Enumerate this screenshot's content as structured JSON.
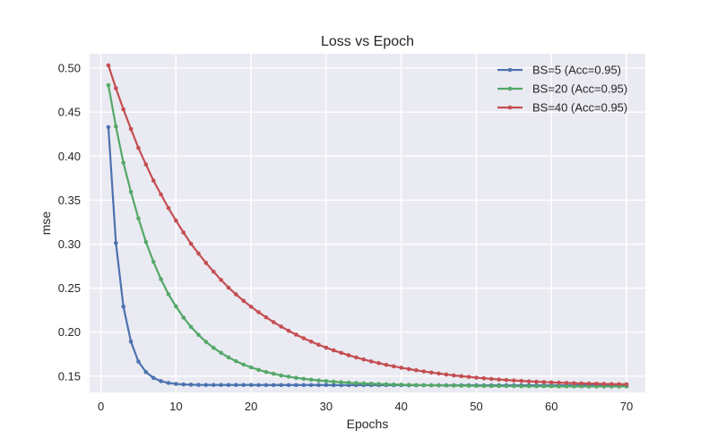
{
  "chart_data": {
    "type": "line",
    "title": "Loss vs Epoch",
    "xlabel": "Epochs",
    "ylabel": "mse",
    "xlim": [
      -1.5,
      72.5
    ],
    "ylim": [
      0.1315,
      0.5164
    ],
    "xticks": [
      0,
      10,
      20,
      30,
      40,
      50,
      60,
      70
    ],
    "xtick_labels": [
      "0",
      "10",
      "20",
      "30",
      "40",
      "50",
      "60",
      "70"
    ],
    "yticks": [
      0.15,
      0.2,
      0.25,
      0.3,
      0.35,
      0.4,
      0.45,
      0.5
    ],
    "ytick_labels": [
      "0.15",
      "0.20",
      "0.25",
      "0.30",
      "0.35",
      "0.40",
      "0.45",
      "0.50"
    ],
    "grid": true,
    "legend_position": "top-right",
    "x": [
      1,
      2,
      3,
      4,
      5,
      6,
      7,
      8,
      9,
      10,
      11,
      12,
      13,
      14,
      15,
      16,
      17,
      18,
      19,
      20,
      21,
      22,
      23,
      24,
      25,
      26,
      27,
      28,
      29,
      30,
      31,
      32,
      33,
      34,
      35,
      36,
      37,
      38,
      39,
      40,
      41,
      42,
      43,
      44,
      45,
      46,
      47,
      48,
      49,
      50,
      51,
      52,
      53,
      54,
      55,
      56,
      57,
      58,
      59,
      60,
      61,
      62,
      63,
      64,
      65,
      66,
      67,
      68,
      69,
      70
    ],
    "series": [
      {
        "name": "BS=5 (Acc=0.95)",
        "color": "#4c72b0",
        "values": [
          0.433,
          0.3013,
          0.229,
          0.1893,
          0.1665,
          0.1547,
          0.148,
          0.1443,
          0.1423,
          0.1412,
          0.1406,
          0.1403,
          0.1401,
          0.14,
          0.14,
          0.14,
          0.14,
          0.14,
          0.14,
          0.14,
          0.1399,
          0.1399,
          0.1399,
          0.1399,
          0.1399,
          0.1399,
          0.1399,
          0.1399,
          0.1399,
          0.1399,
          0.1398,
          0.1398,
          0.1398,
          0.1398,
          0.1398,
          0.1398,
          0.1398,
          0.1398,
          0.1398,
          0.1398,
          0.1397,
          0.1397,
          0.1397,
          0.1397,
          0.1397,
          0.1397,
          0.1397,
          0.1397,
          0.1397,
          0.1397,
          0.1396,
          0.1396,
          0.1396,
          0.1396,
          0.1396,
          0.1396,
          0.1396,
          0.1396,
          0.1396,
          0.1396,
          0.1395,
          0.1395,
          0.1395,
          0.1395,
          0.1395,
          0.1395,
          0.1395,
          0.1395,
          0.1395,
          0.1395
        ]
      },
      {
        "name": "BS=20 (Acc=0.95)",
        "color": "#55a868",
        "values": [
          0.4807,
          0.4338,
          0.3925,
          0.3594,
          0.3293,
          0.3025,
          0.28,
          0.2602,
          0.243,
          0.2292,
          0.2166,
          0.206,
          0.197,
          0.189,
          0.1822,
          0.1765,
          0.1713,
          0.167,
          0.1632,
          0.16,
          0.1572,
          0.1548,
          0.1527,
          0.1509,
          0.1494,
          0.1481,
          0.147,
          0.146,
          0.1451,
          0.1444,
          0.1437,
          0.1431,
          0.1426,
          0.1421,
          0.1417,
          0.1414,
          0.1411,
          0.1408,
          0.1405,
          0.1403,
          0.1401,
          0.1399,
          0.1397,
          0.1396,
          0.1395,
          0.1394,
          0.1393,
          0.1392,
          0.1391,
          0.139,
          0.1389,
          0.1388,
          0.1388,
          0.1387,
          0.1387,
          0.1386,
          0.1386,
          0.1385,
          0.1385,
          0.1385,
          0.1384,
          0.1384,
          0.1384,
          0.1384,
          0.1383,
          0.1383,
          0.1383,
          0.1383,
          0.1383,
          0.1383
        ]
      },
      {
        "name": "BS=40 (Acc=0.95)",
        "color": "#c44e52",
        "values": [
          0.5032,
          0.4772,
          0.4532,
          0.431,
          0.4093,
          0.3906,
          0.3723,
          0.3565,
          0.341,
          0.3268,
          0.3133,
          0.3005,
          0.2894,
          0.2787,
          0.2688,
          0.2594,
          0.2506,
          0.2429,
          0.2356,
          0.2289,
          0.2227,
          0.2169,
          0.2114,
          0.2064,
          0.2016,
          0.1972,
          0.1931,
          0.1893,
          0.1857,
          0.1824,
          0.1793,
          0.1765,
          0.1738,
          0.1713,
          0.169,
          0.1668,
          0.1648,
          0.1629,
          0.1612,
          0.1596,
          0.1581,
          0.1567,
          0.1554,
          0.1541,
          0.153,
          0.1519,
          0.1509,
          0.15,
          0.1492,
          0.1483,
          0.1476,
          0.1469,
          0.1462,
          0.1456,
          0.1451,
          0.1446,
          0.1441,
          0.1437,
          0.1433,
          0.1429,
          0.1426,
          0.1423,
          0.142,
          0.1418,
          0.1416,
          0.1414,
          0.1412,
          0.141,
          0.1409,
          0.1408
        ]
      }
    ]
  }
}
